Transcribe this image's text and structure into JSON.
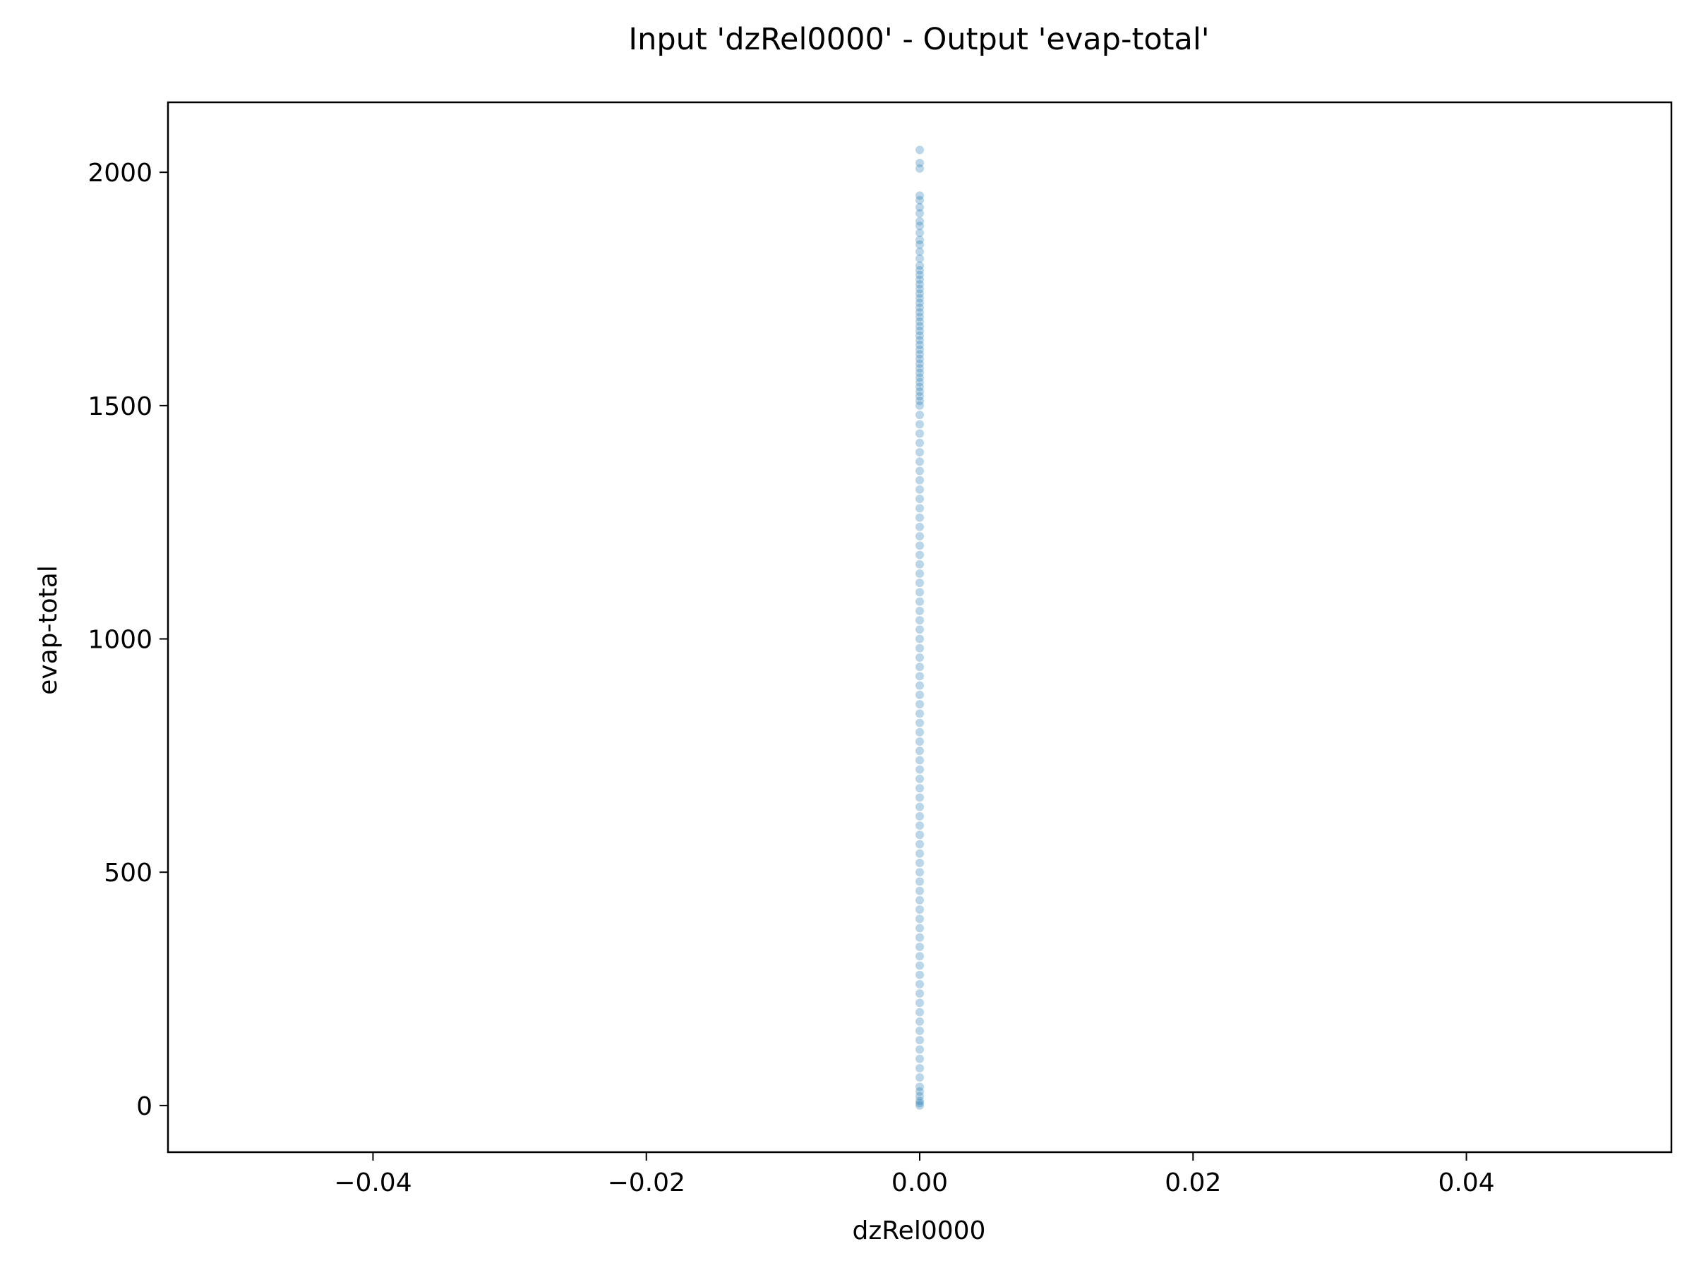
{
  "chart_data": {
    "type": "scatter",
    "title": "Input 'dzRel0000' - Output 'evap-total'",
    "xlabel": "dzRel0000",
    "ylabel": "evap-total",
    "xlim": [
      -0.055,
      0.055
    ],
    "ylim": [
      -100,
      2150
    ],
    "xticks": [
      -0.04,
      -0.02,
      0.0,
      0.02,
      0.04
    ],
    "xtick_labels": [
      "−0.04",
      "−0.02",
      "0.00",
      "0.02",
      "0.04"
    ],
    "yticks": [
      0,
      500,
      1000,
      1500,
      2000
    ],
    "ytick_labels": [
      "0",
      "500",
      "1000",
      "1500",
      "2000"
    ],
    "grid": false,
    "legend": "none",
    "marker_color": "#1f77b4",
    "series": [
      {
        "x": [
          0,
          0,
          0,
          0,
          0,
          0,
          0,
          0,
          0,
          0,
          0,
          0,
          0,
          0,
          0,
          0,
          0,
          0,
          0,
          0,
          0,
          0,
          0,
          0,
          0,
          0,
          0,
          0,
          0,
          0,
          0,
          0,
          0,
          0,
          0,
          0,
          0,
          0,
          0,
          0,
          0,
          0,
          0,
          0,
          0,
          0,
          0,
          0,
          0,
          0,
          0,
          0,
          0,
          0,
          0,
          0,
          0,
          0,
          0,
          0,
          0,
          0,
          0,
          0,
          0,
          0,
          0,
          0,
          0,
          0,
          0,
          0,
          0,
          0,
          0,
          0,
          0,
          0,
          0,
          0,
          0,
          0,
          0,
          0,
          0,
          0,
          0,
          0,
          0,
          0,
          0,
          0,
          0,
          0,
          0,
          0,
          0,
          0,
          0,
          0,
          0,
          0,
          0,
          0,
          0,
          0,
          0,
          0,
          0,
          0,
          0,
          0,
          0,
          0,
          0,
          0,
          0,
          0,
          0,
          0,
          0,
          0,
          0
        ],
        "y": [
          2048,
          2020,
          2008,
          1950,
          1940,
          1925,
          1912,
          1895,
          1885,
          1870,
          1855,
          1845,
          1830,
          1815,
          1800,
          1790,
          1780,
          1770,
          1760,
          1750,
          1740,
          1730,
          1720,
          1710,
          1700,
          1690,
          1680,
          1670,
          1660,
          1650,
          1640,
          1630,
          1620,
          1610,
          1600,
          1590,
          1580,
          1570,
          1560,
          1550,
          1540,
          1530,
          1520,
          1510,
          1500,
          1480,
          1460,
          1440,
          1420,
          1400,
          1380,
          1360,
          1340,
          1320,
          1300,
          1280,
          1260,
          1240,
          1220,
          1200,
          1180,
          1160,
          1140,
          1120,
          1100,
          1080,
          1060,
          1040,
          1020,
          1000,
          980,
          960,
          940,
          920,
          900,
          880,
          860,
          840,
          820,
          800,
          780,
          760,
          740,
          720,
          700,
          680,
          660,
          640,
          620,
          600,
          580,
          560,
          540,
          520,
          500,
          480,
          460,
          440,
          420,
          400,
          380,
          360,
          340,
          320,
          300,
          280,
          260,
          240,
          220,
          200,
          180,
          160,
          140,
          120,
          100,
          80,
          60,
          40,
          30,
          20,
          10,
          5,
          0
        ]
      }
    ]
  }
}
